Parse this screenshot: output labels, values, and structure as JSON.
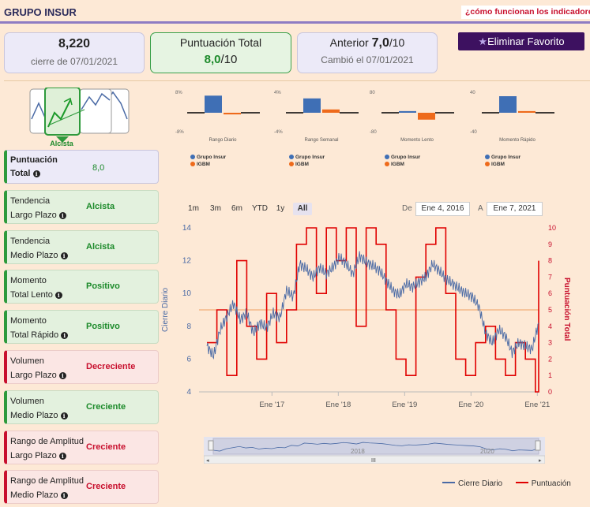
{
  "header": {
    "title": "GRUPO INSUR",
    "help_link": "¿cómo funcionan los indicadores?"
  },
  "cards": {
    "close": {
      "value": "8,220",
      "label": "cierre de 07/01/2021"
    },
    "score": {
      "label": "Puntuación Total",
      "value": "8,0",
      "max": "/10"
    },
    "previous": {
      "label": "Anterior",
      "value": "7,0",
      "max": "/10",
      "changed": "Cambió el 07/01/2021"
    }
  },
  "favorite_button": {
    "label": "Eliminar Favorito"
  },
  "trend_icon": {
    "label": "Alcista"
  },
  "info_icon": "i",
  "indicators": [
    {
      "line1": "Puntuación",
      "line2": "Total",
      "value": "8,0"
    },
    {
      "line1": "Tendencia",
      "line2": "Largo Plazo",
      "value": "Alcista"
    },
    {
      "line1": "Tendencia",
      "line2": "Medio Plazo",
      "value": "Alcista"
    },
    {
      "line1": "Momento",
      "line2": "Total Lento",
      "value": "Positivo"
    },
    {
      "line1": "Momento",
      "line2": "Total Rápido",
      "value": "Positivo"
    },
    {
      "line1": "Volumen",
      "line2": "Largo Plazo",
      "value": "Decreciente"
    },
    {
      "line1": "Volumen",
      "line2": "Medio Plazo",
      "value": "Creciente"
    },
    {
      "line1": "Rango de Amplitud",
      "line2": "Largo Plazo",
      "value": "Creciente"
    },
    {
      "line1": "Rango de Amplitud",
      "line2": "Medio Plazo",
      "value": "Creciente"
    }
  ],
  "chart_data": [
    {
      "type": "bar",
      "categories": [
        "Rango Diario"
      ],
      "series": [
        {
          "name": "Grupo Insur",
          "values": [
            6.2
          ]
        },
        {
          "name": "IGBM",
          "values": [
            -0.6
          ]
        }
      ],
      "ylim": [
        -8,
        8
      ],
      "ytick_labels": [
        "8%",
        "-8%"
      ],
      "color_a": "#3f6fb5",
      "color_b": "#ee6a1b"
    },
    {
      "type": "bar",
      "categories": [
        "Rango Semanal"
      ],
      "series": [
        {
          "name": "Grupo Insur",
          "values": [
            2.6
          ]
        },
        {
          "name": "IGBM",
          "values": [
            0.6
          ]
        }
      ],
      "ylim": [
        -4,
        4
      ],
      "ytick_labels": [
        "4%",
        "-4%"
      ],
      "color_a": "#3f6fb5",
      "color_b": "#ee6a1b"
    },
    {
      "type": "bar",
      "categories": [
        "Momento Lento"
      ],
      "series": [
        {
          "name": "Grupo Insur",
          "values": [
            6
          ]
        },
        {
          "name": "IGBM",
          "values": [
            -25
          ]
        }
      ],
      "ylim": [
        -80,
        80
      ],
      "ytick_labels": [
        "80",
        "-80"
      ],
      "color_a": "#3f6fb5",
      "color_b": "#ee6a1b"
    },
    {
      "type": "bar",
      "categories": [
        "Momento Rápido"
      ],
      "series": [
        {
          "name": "Grupo Insur",
          "values": [
            30
          ]
        },
        {
          "name": "IGBM",
          "values": [
            3
          ]
        }
      ],
      "ylim": [
        -40,
        40
      ],
      "ytick_labels": [
        "40",
        "-40"
      ],
      "color_a": "#3f6fb5",
      "color_b": "#ee6a1b"
    },
    {
      "type": "line",
      "x_start": "2016-01",
      "x_end": "2021-01",
      "xtick_labels": [
        "Ene '17",
        "Ene '18",
        "Ene '19",
        "Ene '20",
        "Ene '21"
      ],
      "xtick_years": [
        2017,
        2018,
        2019,
        2020,
        2021
      ],
      "ylim_left": [
        4,
        14
      ],
      "yticks_left": [
        4,
        6,
        8,
        10,
        12,
        14
      ],
      "ylim_right": [
        0,
        10
      ],
      "yticks_right": [
        0,
        1,
        2,
        3,
        4,
        5,
        6,
        7,
        8,
        9,
        10
      ],
      "ylabel_left": "Cierre Diario",
      "ylabel_right": "Puntuación Total",
      "reference_line": 9.0,
      "series": [
        {
          "name": "Cierre Diario",
          "color": "#4a6aa5",
          "x": [
            2016.0,
            2016.1,
            2016.2,
            2016.3,
            2016.4,
            2016.5,
            2016.6,
            2016.7,
            2016.8,
            2016.9,
            2017.0,
            2017.1,
            2017.2,
            2017.3,
            2017.4,
            2017.5,
            2017.6,
            2017.7,
            2017.8,
            2017.9,
            2018.0,
            2018.1,
            2018.2,
            2018.3,
            2018.4,
            2018.5,
            2018.6,
            2018.7,
            2018.8,
            2018.9,
            2019.0,
            2019.1,
            2019.2,
            2019.3,
            2019.4,
            2019.5,
            2019.6,
            2019.7,
            2019.8,
            2019.9,
            2020.0,
            2020.1,
            2020.2,
            2020.3,
            2020.4,
            2020.5,
            2020.6,
            2020.7,
            2020.8,
            2020.9,
            2021.0
          ],
          "values": [
            6.8,
            6.2,
            7.8,
            8.6,
            9.4,
            8.4,
            8.8,
            7.6,
            8.2,
            7.9,
            8.8,
            8.5,
            10.2,
            9.8,
            11.8,
            11.5,
            11.0,
            11.6,
            11.2,
            11.6,
            12.2,
            11.8,
            11.2,
            12.3,
            11.9,
            11.7,
            11.4,
            10.8,
            10.2,
            9.9,
            10.6,
            10.4,
            10.7,
            11.0,
            11.8,
            11.4,
            10.9,
            10.6,
            10.3,
            10.0,
            9.8,
            9.2,
            7.6,
            7.0,
            7.8,
            7.4,
            6.4,
            7.0,
            6.8,
            6.6,
            8.2
          ]
        },
        {
          "name": "Puntuación",
          "color": "#e00000",
          "x": [
            2016.0,
            2016.15,
            2016.3,
            2016.45,
            2016.6,
            2016.75,
            2016.9,
            2017.05,
            2017.2,
            2017.35,
            2017.5,
            2017.65,
            2017.8,
            2017.95,
            2018.1,
            2018.25,
            2018.4,
            2018.55,
            2018.7,
            2018.85,
            2019.0,
            2019.15,
            2019.3,
            2019.45,
            2019.6,
            2019.75,
            2019.9,
            2020.05,
            2020.2,
            2020.35,
            2020.5,
            2020.65,
            2020.8,
            2020.95,
            2021.0
          ],
          "values": [
            3,
            5,
            1,
            8,
            4,
            2,
            6,
            3,
            5,
            9,
            10,
            6,
            10,
            8,
            10,
            4,
            10,
            9,
            5,
            2,
            1,
            7,
            9,
            10,
            6,
            2,
            1,
            3,
            4,
            2,
            1,
            3,
            2,
            0,
            8
          ]
        }
      ]
    }
  ],
  "range_buttons": [
    "1m",
    "3m",
    "6m",
    "YTD",
    "1y",
    "All"
  ],
  "range_selected": "All",
  "date_from_label": "De",
  "date_from": "Ene 4, 2016",
  "date_to_label": "A",
  "date_to": "Ene 7, 2021",
  "navigator": {
    "labels": [
      "2018",
      "2020"
    ],
    "handle": "III"
  },
  "legend_main": [
    "Cierre Diario",
    "Puntuación"
  ]
}
